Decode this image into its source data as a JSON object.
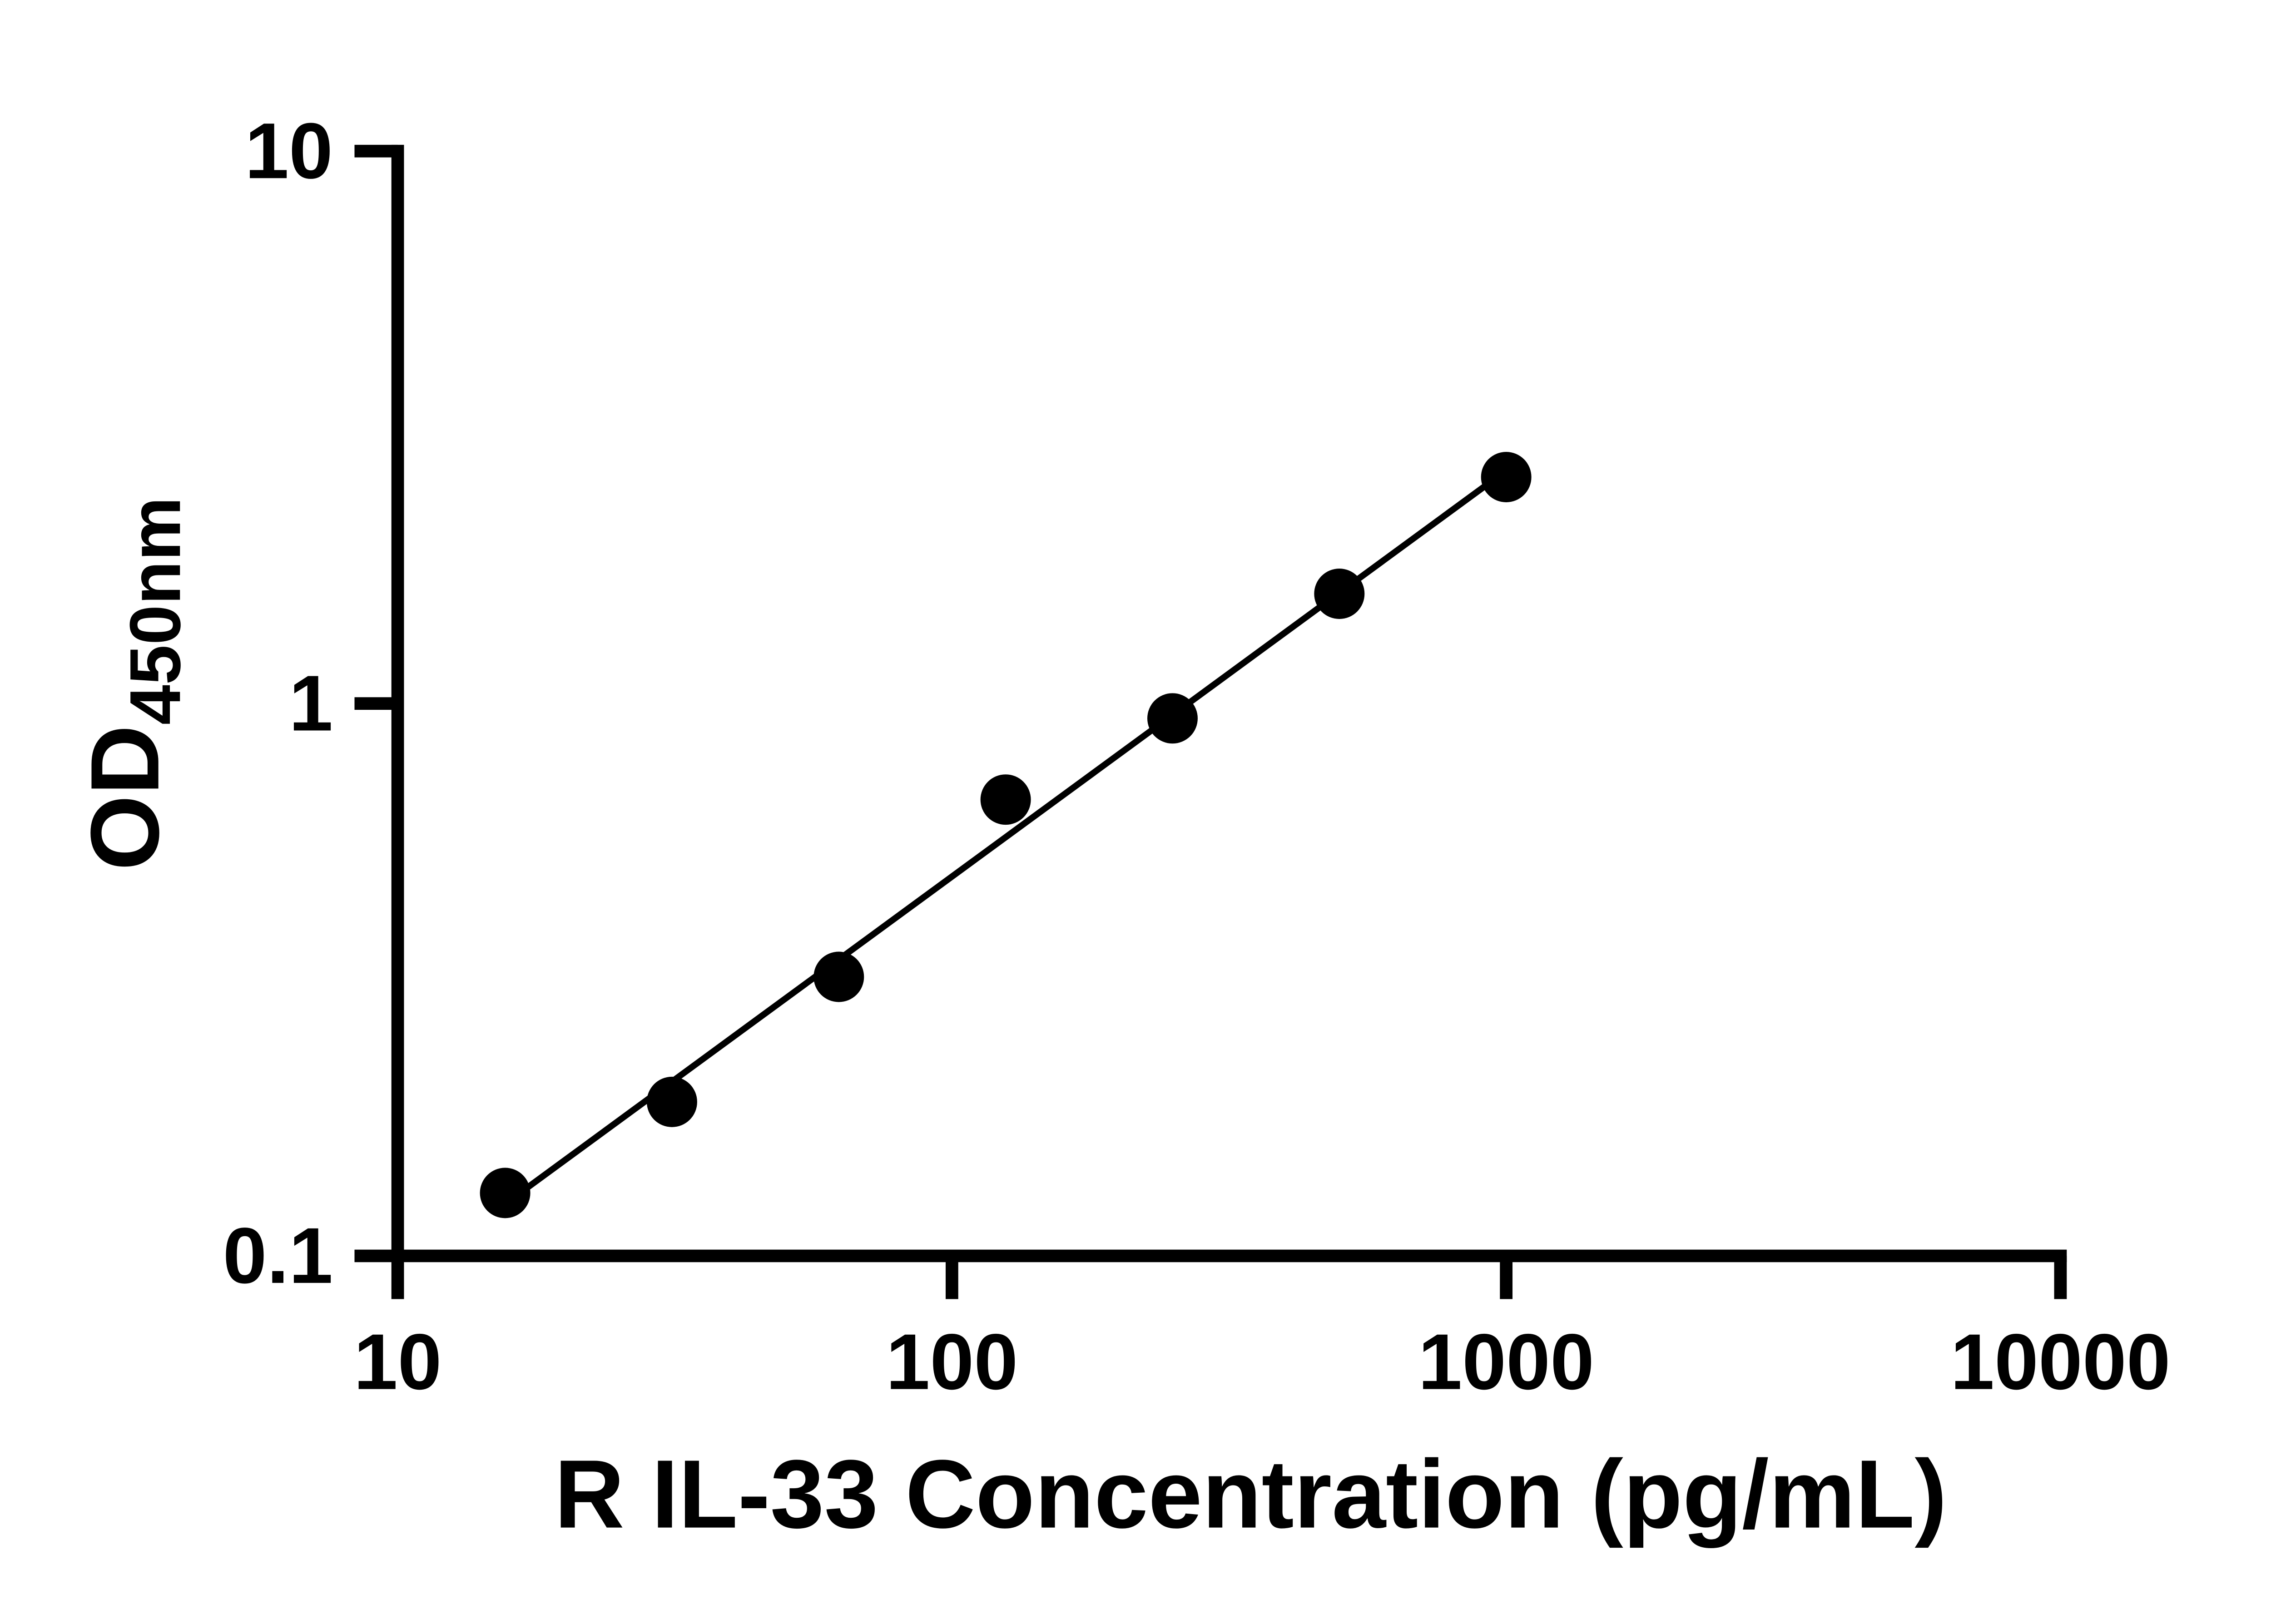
{
  "figure": {
    "background": "#ffffff"
  },
  "chart_data": {
    "type": "scatter",
    "title": "",
    "xlabel": "R IL-33 Concentration (pg/mL)",
    "ylabel_main": "OD",
    "ylabel_sub": "450nm",
    "x_scale": "log",
    "y_scale": "log",
    "xlim": [
      10,
      10000
    ],
    "ylim": [
      0.1,
      10
    ],
    "x_ticks": [
      10,
      100,
      1000,
      10000
    ],
    "x_tick_labels": [
      "10",
      "100",
      "1000",
      "10000"
    ],
    "y_ticks": [
      0.1,
      1,
      10
    ],
    "y_tick_labels": [
      "0.1",
      "1",
      "10"
    ],
    "points": [
      {
        "x": 15.625,
        "y": 0.13
      },
      {
        "x": 31.25,
        "y": 0.19
      },
      {
        "x": 62.5,
        "y": 0.32
      },
      {
        "x": 125,
        "y": 0.67
      },
      {
        "x": 250,
        "y": 0.94
      },
      {
        "x": 500,
        "y": 1.58
      },
      {
        "x": 1000,
        "y": 2.57
      }
    ],
    "trendline": {
      "type": "power-fit",
      "x_start": 15.625,
      "x_end": 1000
    },
    "marker": {
      "shape": "circle",
      "color": "#000000",
      "radius_px": 14
    },
    "line_color": "#000000",
    "axis_color": "#000000",
    "tick_direction": "out",
    "grid": false,
    "legend": null
  }
}
